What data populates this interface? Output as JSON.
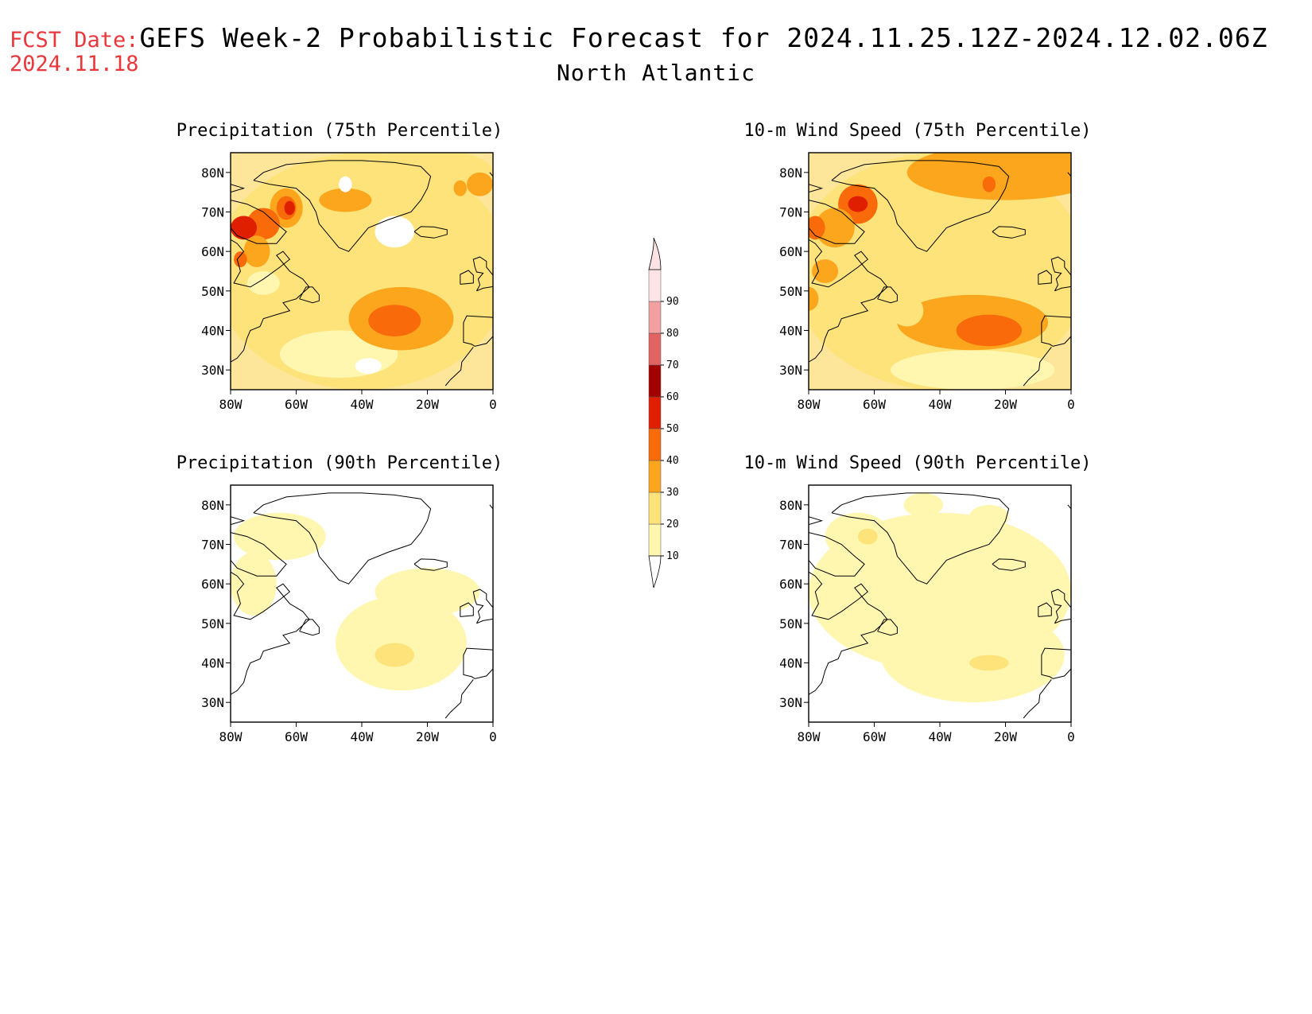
{
  "fcst_date": {
    "label": "FCST Date:",
    "value": "2024.11.18"
  },
  "title": {
    "line1": "GEFS Week-2 Probabilistic Forecast for 2024.11.25.12Z-2024.12.02.06Z",
    "line2": "North Atlantic"
  },
  "axes": {
    "lon_labels": [
      "80W",
      "60W",
      "40W",
      "20W",
      "0"
    ],
    "lat_labels": [
      "80N",
      "70N",
      "60N",
      "50N",
      "40N",
      "30N"
    ]
  },
  "panels": [
    {
      "id": "precip75",
      "title": "Precipitation (75th Percentile)"
    },
    {
      "id": "wind75",
      "title": "10-m Wind Speed (75th Percentile)"
    },
    {
      "id": "precip90",
      "title": "Precipitation (90th Percentile)"
    },
    {
      "id": "wind90",
      "title": "10-m Wind Speed (90th Percentile)"
    }
  ],
  "colorbar": {
    "levels": [
      "10",
      "20",
      "30",
      "40",
      "50",
      "60",
      "70",
      "80",
      "90"
    ],
    "colors": [
      "#fff7b0",
      "#fde37a",
      "#fca61d",
      "#f96b0a",
      "#e01e00",
      "#a30000",
      "#e26462",
      "#f2a0a0",
      "#fde3e5"
    ]
  },
  "palette": {
    "base": "#fde69a",
    "land": "#fff5b8",
    "white": "#ffffff",
    "fcst_color": "#e8383c"
  }
}
